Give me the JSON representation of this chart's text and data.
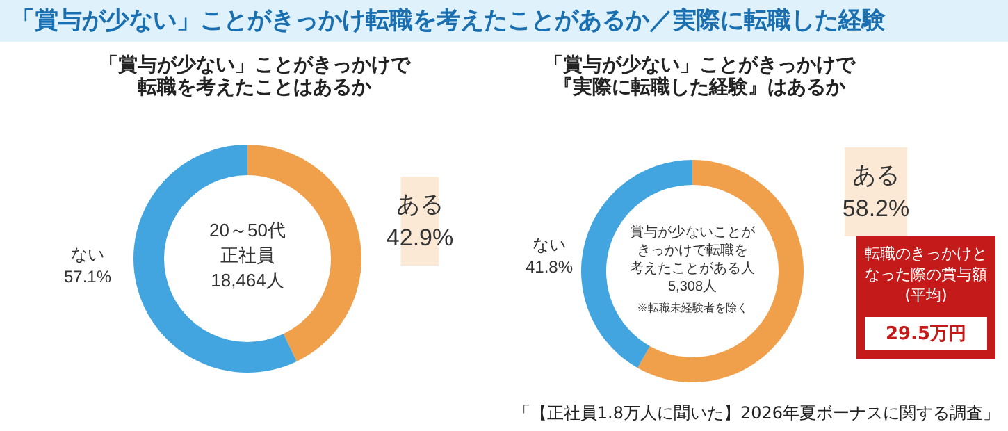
{
  "chart_data": [
    {
      "type": "other",
      "title": "「賞与が少ない」ことがきっかけ転職を考えたことがあるか／実際に転職した経験",
      "annotations": [
        "「【正社員1.8万人に聞いた】2026年夏ボーナスに関する調査」"
      ]
    },
    {
      "type": "donut",
      "title": "「賞与が少ない」ことがきっかけで",
      "subtitle": "転職を考えたことはあるか",
      "categories": [
        "ある",
        "ない"
      ],
      "values": [
        42.9,
        57.1
      ],
      "colors": [
        "#f0a04b",
        "#42a5df"
      ],
      "value_labels": [
        "42.9%",
        "57.1%"
      ],
      "annotations": [
        "20～50代",
        "正社員",
        "18,464人"
      ]
    },
    {
      "type": "donut",
      "title": "「賞与が少ない」ことがきっかけで",
      "subtitle": "『実際に転職した経験』はあるか",
      "categories": [
        "ある",
        "ない"
      ],
      "values": [
        58.2,
        41.8
      ],
      "colors": [
        "#f0a04b",
        "#42a5df"
      ],
      "value_labels": [
        "58.2%",
        "41.8%"
      ],
      "annotations": [
        "賞与が少ないことが",
        "きっかけで転職を",
        "考えたことがある人",
        "5,308人",
        "※転職未経験者を除く"
      ]
    },
    {
      "type": "other",
      "title": "転職のきっかけとなった際の賞与額(平均)",
      "annotations": [
        "29.5万円"
      ]
    }
  ]
}
